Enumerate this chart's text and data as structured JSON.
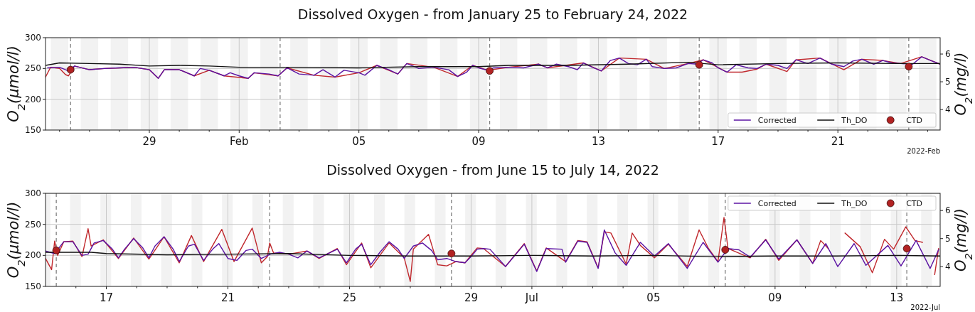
{
  "chart_data": [
    {
      "type": "line",
      "title": "Dissolved Oxygen - from January 25 to February 24, 2022",
      "ylabel": "O$_{2}$(μmol/l)",
      "y2label": "O$_{2}$(mg/l)",
      "xlim": [
        "2022-01-25T12:45",
        "2022-02-24T10:00"
      ],
      "ylim": [
        150,
        300
      ],
      "yticks": [
        150,
        200,
        250,
        300
      ],
      "y2lim": [
        3.26,
        6.59
      ],
      "y2ticks": [
        4,
        5,
        6
      ],
      "xticks": [
        {
          "value": "2022-01-26T00:00",
          "label": null
        },
        {
          "value": "2022-01-27T00:00",
          "label": null
        },
        {
          "value": "2022-01-28T00:00",
          "label": null
        },
        {
          "value": "2022-01-29T00:00",
          "label": "29"
        },
        {
          "value": "2022-01-30T00:00",
          "label": null
        },
        {
          "value": "2022-01-31T00:00",
          "label": null
        },
        {
          "value": "2022-02-01T00:00",
          "label": "Feb"
        },
        {
          "value": "2022-02-02T00:00",
          "label": null
        },
        {
          "value": "2022-02-03T00:00",
          "label": null
        },
        {
          "value": "2022-02-04T00:00",
          "label": null
        },
        {
          "value": "2022-02-05T00:00",
          "label": "05"
        },
        {
          "value": "2022-02-06T00:00",
          "label": null
        },
        {
          "value": "2022-02-07T00:00",
          "label": null
        },
        {
          "value": "2022-02-08T00:00",
          "label": null
        },
        {
          "value": "2022-02-09T00:00",
          "label": "09"
        },
        {
          "value": "2022-02-10T00:00",
          "label": null
        },
        {
          "value": "2022-02-11T00:00",
          "label": null
        },
        {
          "value": "2022-02-12T00:00",
          "label": null
        },
        {
          "value": "2022-02-13T00:00",
          "label": "13"
        },
        {
          "value": "2022-02-14T00:00",
          "label": null
        },
        {
          "value": "2022-02-15T00:00",
          "label": null
        },
        {
          "value": "2022-02-16T00:00",
          "label": null
        },
        {
          "value": "2022-02-17T00:00",
          "label": "17"
        },
        {
          "value": "2022-02-18T00:00",
          "label": null
        },
        {
          "value": "2022-02-19T00:00",
          "label": null
        },
        {
          "value": "2022-02-20T00:00",
          "label": null
        },
        {
          "value": "2022-02-21T00:00",
          "label": "21"
        },
        {
          "value": "2022-02-22T00:00",
          "label": null
        },
        {
          "value": "2022-02-23T00:00",
          "label": null
        },
        {
          "value": "2022-02-24T00:00",
          "label": null
        }
      ],
      "grid": true,
      "legend": "bottom right",
      "annotations": [
        "2022-Feb"
      ],
      "bands": [
        {
          "axis": "x",
          "from": "2022-01-25T17:00",
          "to": "2022-01-26T07:00",
          "color": "#f2f2f2"
        },
        {
          "axis": "x",
          "from": "2022-01-26T17:00",
          "to": "2022-01-27T07:00",
          "color": "#f2f2f2"
        },
        {
          "axis": "x",
          "from": "2022-01-27T17:00",
          "to": "2022-01-28T07:00",
          "color": "#f2f2f2"
        },
        {
          "axis": "x",
          "from": "2022-01-28T17:00",
          "to": "2022-01-29T07:00",
          "color": "#f2f2f2"
        },
        {
          "axis": "x",
          "from": "2022-01-29T17:00",
          "to": "2022-01-30T07:00",
          "color": "#f2f2f2"
        },
        {
          "axis": "x",
          "from": "2022-01-30T17:00",
          "to": "2022-01-31T07:00",
          "color": "#f2f2f2"
        },
        {
          "axis": "x",
          "from": "2022-01-31T17:00",
          "to": "2022-02-01T07:00",
          "color": "#f2f2f2"
        },
        {
          "axis": "x",
          "from": "2022-02-01T17:00",
          "to": "2022-02-02T07:00",
          "color": "#f2f2f2"
        },
        {
          "axis": "x",
          "from": "2022-02-02T17:00",
          "to": "2022-02-03T07:00",
          "color": "#f2f2f2"
        },
        {
          "axis": "x",
          "from": "2022-02-03T17:00",
          "to": "2022-02-04T07:00",
          "color": "#f2f2f2"
        },
        {
          "axis": "x",
          "from": "2022-02-04T17:00",
          "to": "2022-02-05T07:00",
          "color": "#f2f2f2"
        },
        {
          "axis": "x",
          "from": "2022-02-05T17:00",
          "to": "2022-02-06T07:00",
          "color": "#f2f2f2"
        },
        {
          "axis": "x",
          "from": "2022-02-06T17:00",
          "to": "2022-02-07T07:00",
          "color": "#f2f2f2"
        },
        {
          "axis": "x",
          "from": "2022-02-07T17:00",
          "to": "2022-02-08T07:00",
          "color": "#f2f2f2"
        },
        {
          "axis": "x",
          "from": "2022-02-08T17:00",
          "to": "2022-02-09T07:00",
          "color": "#f2f2f2"
        },
        {
          "axis": "x",
          "from": "2022-02-09T17:00",
          "to": "2022-02-10T07:00",
          "color": "#f2f2f2"
        },
        {
          "axis": "x",
          "from": "2022-02-10T17:00",
          "to": "2022-02-11T07:00",
          "color": "#f2f2f2"
        },
        {
          "axis": "x",
          "from": "2022-02-11T17:00",
          "to": "2022-02-12T07:00",
          "color": "#f2f2f2"
        },
        {
          "axis": "x",
          "from": "2022-02-12T17:00",
          "to": "2022-02-13T07:00",
          "color": "#f2f2f2"
        },
        {
          "axis": "x",
          "from": "2022-02-13T17:00",
          "to": "2022-02-14T07:00",
          "color": "#f2f2f2"
        },
        {
          "axis": "x",
          "from": "2022-02-14T17:00",
          "to": "2022-02-15T07:00",
          "color": "#f2f2f2"
        },
        {
          "axis": "x",
          "from": "2022-02-15T17:00",
          "to": "2022-02-16T07:00",
          "color": "#f2f2f2"
        },
        {
          "axis": "x",
          "from": "2022-02-16T17:00",
          "to": "2022-02-17T07:00",
          "color": "#f2f2f2"
        },
        {
          "axis": "x",
          "from": "2022-02-17T17:00",
          "to": "2022-02-18T07:00",
          "color": "#f2f2f2"
        },
        {
          "axis": "x",
          "from": "2022-02-18T17:00",
          "to": "2022-02-19T07:00",
          "color": "#f2f2f2"
        },
        {
          "axis": "x",
          "from": "2022-02-19T17:00",
          "to": "2022-02-20T07:00",
          "color": "#f2f2f2"
        },
        {
          "axis": "x",
          "from": "2022-02-20T17:00",
          "to": "2022-02-21T07:00",
          "color": "#f2f2f2"
        },
        {
          "axis": "x",
          "from": "2022-02-21T17:00",
          "to": "2022-02-22T07:00",
          "color": "#f2f2f2"
        },
        {
          "axis": "x",
          "from": "2022-02-22T17:00",
          "to": "2022-02-23T07:00",
          "color": "#f2f2f2"
        },
        {
          "axis": "x",
          "from": "2022-02-23T17:00",
          "to": "2022-02-24T07:00",
          "color": "#f2f2f2"
        }
      ],
      "ref_lines": [
        {
          "axis": "x",
          "value": "2022-01-26T08:50",
          "color": "#808080",
          "line_style": "dashed"
        },
        {
          "axis": "x",
          "value": "2022-02-02T08:50",
          "color": "#808080",
          "line_style": "dashed"
        },
        {
          "axis": "x",
          "value": "2022-02-09T08:50",
          "color": "#808080",
          "line_style": "dashed"
        },
        {
          "axis": "x",
          "value": "2022-02-16T08:50",
          "color": "#808080",
          "line_style": "dashed"
        },
        {
          "axis": "x",
          "value": "2022-02-23T08:50",
          "color": "#808080",
          "line_style": "dashed"
        }
      ],
      "series": [
        {
          "type": "line",
          "color": "#c0282d",
          "x": [
            "2022-01-25T12:45",
            "2022-01-25T16:48",
            "2022-01-26T00:00",
            "2022-01-26T04:48",
            "2022-01-26T07:12",
            "2022-01-26T12:00",
            "2022-01-27T00:00",
            "2022-01-27T12:00",
            "2022-01-28T00:00",
            "2022-01-28T12:00",
            "2022-01-29T00:00",
            "2022-01-29T07:12",
            "2022-01-29T12:00",
            "2022-01-30T00:00",
            "2022-01-30T12:00",
            "2022-01-31T00:00",
            "2022-01-31T12:00",
            "2022-02-01T07:12",
            "2022-02-01T12:00",
            "2022-02-02T07:12",
            "2022-02-02T14:24",
            "2022-02-03T12:00",
            "2022-02-04T04:48",
            "2022-02-05T00:00",
            "2022-02-05T14:24",
            "2022-02-06T07:12",
            "2022-02-06T14:24",
            "2022-02-07T12:00",
            "2022-02-08T07:12",
            "2022-02-08T19:12",
            "2022-02-09T07:12",
            "2022-02-10T00:00",
            "2022-02-11T00:00",
            "2022-02-11T07:12",
            "2022-02-12T12:00",
            "2022-02-13T02:24",
            "2022-02-13T16:48",
            "2022-02-14T14:24",
            "2022-02-15T04:48",
            "2022-02-16T00:00",
            "2022-02-16T12:00",
            "2022-02-17T07:12",
            "2022-02-17T19:12",
            "2022-02-18T07:12",
            "2022-02-18T14:24",
            "2022-02-19T07:12",
            "2022-02-19T14:24",
            "2022-02-20T09:36",
            "2022-02-21T04:48",
            "2022-02-21T19:12",
            "2022-02-22T12:00",
            "2022-02-23T02:24",
            "2022-02-23T19:12",
            "2022-02-24T10:00"
          ],
          "values": [
            236,
            252,
            250,
            240,
            238,
            254,
            248,
            250,
            251,
            252,
            248,
            234,
            248,
            248,
            238,
            247,
            238,
            234,
            243,
            238,
            251,
            239,
            236,
            243,
            255,
            241,
            258,
            252,
            237,
            255,
            247,
            252,
            257,
            251,
            259,
            246,
            267,
            265,
            250,
            258,
            264,
            244,
            244,
            249,
            257,
            245,
            264,
            267,
            248,
            265,
            263,
            258,
            269,
            257
          ]
        },
        {
          "type": "line",
          "name": "Corrected",
          "color": "#5b13a3",
          "x": [
            "2022-01-25T14:24",
            "2022-01-26T00:00",
            "2022-01-26T07:12",
            "2022-01-26T12:00",
            "2022-01-27T00:00",
            "2022-01-27T12:00",
            "2022-01-28T00:00",
            "2022-01-28T12:00",
            "2022-01-29T00:00",
            "2022-01-29T07:12",
            "2022-01-29T12:00",
            "2022-01-30T00:00",
            "2022-01-30T12:00",
            "2022-01-30T16:48",
            "2022-01-31T00:00",
            "2022-01-31T12:00",
            "2022-01-31T16:48",
            "2022-02-01T00:00",
            "2022-02-01T07:12",
            "2022-02-01T12:00",
            "2022-02-02T00:00",
            "2022-02-02T07:12",
            "2022-02-02T14:24",
            "2022-02-03T00:00",
            "2022-02-03T12:00",
            "2022-02-03T19:12",
            "2022-02-04T04:48",
            "2022-02-04T12:00",
            "2022-02-05T00:00",
            "2022-02-05T04:48",
            "2022-02-05T14:24",
            "2022-02-06T00:00",
            "2022-02-06T07:12",
            "2022-02-06T14:24",
            "2022-02-07T00:00",
            "2022-02-07T12:00",
            "2022-02-08T00:00",
            "2022-02-08T07:12",
            "2022-02-08T14:24",
            "2022-02-08T19:12",
            "2022-02-09T00:00",
            "2022-02-09T07:12",
            "2022-02-09T12:00",
            "2022-02-10T00:00",
            "2022-02-10T12:00",
            "2022-02-11T00:00",
            "2022-02-11T07:12",
            "2022-02-11T14:24",
            "2022-02-12T00:00",
            "2022-02-12T07:12",
            "2022-02-12T12:00",
            "2022-02-12T19:12",
            "2022-02-13T02:24",
            "2022-02-13T09:36",
            "2022-02-13T16:48",
            "2022-02-14T00:00",
            "2022-02-14T07:12",
            "2022-02-14T14:24",
            "2022-02-14T19:12",
            "2022-02-15T04:48",
            "2022-02-15T14:24",
            "2022-02-16T00:00",
            "2022-02-16T07:12",
            "2022-02-16T12:00",
            "2022-02-16T19:12",
            "2022-02-17T00:00",
            "2022-02-17T07:12",
            "2022-02-17T14:24",
            "2022-02-18T00:00",
            "2022-02-18T07:12",
            "2022-02-18T14:24",
            "2022-02-19T00:00",
            "2022-02-19T07:12",
            "2022-02-19T14:24",
            "2022-02-20T00:00",
            "2022-02-20T09:36",
            "2022-02-20T19:12",
            "2022-02-21T04:48",
            "2022-02-21T12:00",
            "2022-02-21T19:12",
            "2022-02-22T04:48",
            "2022-02-22T12:00",
            "2022-02-22T19:12",
            "2022-02-23T02:24",
            "2022-02-23T12:00",
            "2022-02-23T19:12",
            "2022-02-24T02:24",
            "2022-02-24T10:00"
          ],
          "values": [
            251,
            252,
            246,
            254,
            248,
            250,
            251,
            252,
            248,
            234,
            248,
            248,
            238,
            250,
            247,
            238,
            243,
            238,
            234,
            243,
            241,
            238,
            251,
            241,
            239,
            248,
            236,
            247,
            243,
            239,
            255,
            248,
            241,
            258,
            250,
            252,
            248,
            237,
            244,
            255,
            251,
            247,
            251,
            252,
            251,
            257,
            251,
            257,
            253,
            248,
            259,
            252,
            246,
            263,
            267,
            258,
            256,
            265,
            253,
            250,
            251,
            258,
            257,
            264,
            259,
            251,
            244,
            256,
            251,
            250,
            257,
            255,
            250,
            264,
            258,
            267,
            257,
            253,
            262,
            265,
            257,
            263,
            259,
            258,
            257,
            269,
            263,
            257
          ]
        },
        {
          "type": "line",
          "name": "Th_DO",
          "color": "#111111",
          "x": [
            "2022-01-25T12:45",
            "2022-01-26T00:00",
            "2022-01-27T00:00",
            "2022-01-28T00:00",
            "2022-01-29T00:00",
            "2022-01-30T00:00",
            "2022-01-31T00:00",
            "2022-02-01T00:00",
            "2022-02-03T00:00",
            "2022-02-05T00:00",
            "2022-02-07T00:00",
            "2022-02-09T00:00",
            "2022-02-10T00:00",
            "2022-02-12T00:00",
            "2022-02-14T00:00",
            "2022-02-16T00:00",
            "2022-02-17T00:00",
            "2022-02-19T00:00",
            "2022-02-21T00:00",
            "2022-02-23T00:00",
            "2022-02-24T10:00"
          ],
          "values": [
            255,
            259,
            258,
            257,
            254,
            255,
            254,
            252,
            252,
            251,
            253,
            253,
            255,
            255,
            257,
            260,
            256,
            258,
            259,
            258,
            258
          ]
        },
        {
          "type": "scatter",
          "name": "CTD",
          "color": "#b22222",
          "marker": "circle",
          "x": [
            "2022-01-26T08:50",
            "2022-02-09T08:50",
            "2022-02-16T08:50",
            "2022-02-23T08:50"
          ],
          "values": [
            248,
            246,
            256,
            253
          ]
        }
      ]
    },
    {
      "type": "line",
      "title": "Dissolved Oxygen - from June 15 to July 14, 2022",
      "ylabel": "O$_{2}$(μmol/l)",
      "y2label": "O$_{2}$(mg/l)",
      "xlim": [
        "2022-06-15T00:00",
        "2022-07-14T10:20"
      ],
      "ylim": [
        150,
        300
      ],
      "yticks": [
        150,
        200,
        250,
        300
      ],
      "y2lim": [
        3.3,
        6.61
      ],
      "y2ticks": [
        4,
        5,
        6
      ],
      "xticks": [
        {
          "value": "2022-06-16T00:00",
          "label": null
        },
        {
          "value": "2022-06-17T00:00",
          "label": "17"
        },
        {
          "value": "2022-06-18T00:00",
          "label": null
        },
        {
          "value": "2022-06-19T00:00",
          "label": null
        },
        {
          "value": "2022-06-20T00:00",
          "label": null
        },
        {
          "value": "2022-06-21T00:00",
          "label": "21"
        },
        {
          "value": "2022-06-22T00:00",
          "label": null
        },
        {
          "value": "2022-06-23T00:00",
          "label": null
        },
        {
          "value": "2022-06-24T00:00",
          "label": null
        },
        {
          "value": "2022-06-25T00:00",
          "label": "25"
        },
        {
          "value": "2022-06-26T00:00",
          "label": null
        },
        {
          "value": "2022-06-27T00:00",
          "label": null
        },
        {
          "value": "2022-06-28T00:00",
          "label": null
        },
        {
          "value": "2022-06-29T00:00",
          "label": "29"
        },
        {
          "value": "2022-06-30T00:00",
          "label": null
        },
        {
          "value": "2022-07-01T00:00",
          "label": "Jul"
        },
        {
          "value": "2022-07-02T00:00",
          "label": null
        },
        {
          "value": "2022-07-03T00:00",
          "label": null
        },
        {
          "value": "2022-07-04T00:00",
          "label": null
        },
        {
          "value": "2022-07-05T00:00",
          "label": "05"
        },
        {
          "value": "2022-07-06T00:00",
          "label": null
        },
        {
          "value": "2022-07-07T00:00",
          "label": null
        },
        {
          "value": "2022-07-08T00:00",
          "label": null
        },
        {
          "value": "2022-07-09T00:00",
          "label": "09"
        },
        {
          "value": "2022-07-10T00:00",
          "label": null
        },
        {
          "value": "2022-07-11T00:00",
          "label": null
        },
        {
          "value": "2022-07-12T00:00",
          "label": null
        },
        {
          "value": "2022-07-13T00:00",
          "label": "13"
        },
        {
          "value": "2022-07-14T00:00",
          "label": null
        }
      ],
      "grid": true,
      "legend": "top right",
      "annotations": [
        "2022-Jul"
      ],
      "bands": [
        {
          "axis": "x",
          "from": "2022-06-15T00:00",
          "to": "2022-06-15T03:50",
          "color": "#f2f2f2"
        },
        {
          "axis": "x",
          "from": "2022-06-15T19:20",
          "to": "2022-06-16T03:50",
          "color": "#f2f2f2"
        },
        {
          "axis": "x",
          "from": "2022-06-16T19:20",
          "to": "2022-06-17T03:50",
          "color": "#f2f2f2"
        },
        {
          "axis": "x",
          "from": "2022-06-17T19:20",
          "to": "2022-06-18T03:50",
          "color": "#f2f2f2"
        },
        {
          "axis": "x",
          "from": "2022-06-18T19:20",
          "to": "2022-06-19T03:50",
          "color": "#f2f2f2"
        },
        {
          "axis": "x",
          "from": "2022-06-19T19:20",
          "to": "2022-06-20T03:50",
          "color": "#f2f2f2"
        },
        {
          "axis": "x",
          "from": "2022-06-20T19:20",
          "to": "2022-06-21T03:50",
          "color": "#f2f2f2"
        },
        {
          "axis": "x",
          "from": "2022-06-21T19:20",
          "to": "2022-06-22T03:50",
          "color": "#f2f2f2"
        },
        {
          "axis": "x",
          "from": "2022-06-22T19:20",
          "to": "2022-06-23T03:50",
          "color": "#f2f2f2"
        },
        {
          "axis": "x",
          "from": "2022-06-23T19:20",
          "to": "2022-06-24T03:50",
          "color": "#f2f2f2"
        },
        {
          "axis": "x",
          "from": "2022-06-24T19:20",
          "to": "2022-06-25T03:50",
          "color": "#f2f2f2"
        },
        {
          "axis": "x",
          "from": "2022-06-25T19:20",
          "to": "2022-06-26T03:50",
          "color": "#f2f2f2"
        },
        {
          "axis": "x",
          "from": "2022-06-26T19:20",
          "to": "2022-06-27T03:50",
          "color": "#f2f2f2"
        },
        {
          "axis": "x",
          "from": "2022-06-27T19:20",
          "to": "2022-06-28T03:50",
          "color": "#f2f2f2"
        },
        {
          "axis": "x",
          "from": "2022-06-28T19:20",
          "to": "2022-06-29T03:50",
          "color": "#f2f2f2"
        },
        {
          "axis": "x",
          "from": "2022-06-29T19:20",
          "to": "2022-06-30T03:50",
          "color": "#f2f2f2"
        },
        {
          "axis": "x",
          "from": "2022-06-30T19:20",
          "to": "2022-07-01T03:50",
          "color": "#f2f2f2"
        },
        {
          "axis": "x",
          "from": "2022-07-01T19:20",
          "to": "2022-07-02T03:50",
          "color": "#f2f2f2"
        },
        {
          "axis": "x",
          "from": "2022-07-02T19:20",
          "to": "2022-07-03T03:50",
          "color": "#f2f2f2"
        },
        {
          "axis": "x",
          "from": "2022-07-03T19:20",
          "to": "2022-07-04T03:50",
          "color": "#f2f2f2"
        },
        {
          "axis": "x",
          "from": "2022-07-04T19:20",
          "to": "2022-07-05T03:50",
          "color": "#f2f2f2"
        },
        {
          "axis": "x",
          "from": "2022-07-05T19:20",
          "to": "2022-07-06T03:50",
          "color": "#f2f2f2"
        },
        {
          "axis": "x",
          "from": "2022-07-06T19:20",
          "to": "2022-07-07T03:50",
          "color": "#f2f2f2"
        },
        {
          "axis": "x",
          "from": "2022-07-07T19:20",
          "to": "2022-07-08T03:50",
          "color": "#f2f2f2"
        },
        {
          "axis": "x",
          "from": "2022-07-08T19:20",
          "to": "2022-07-09T03:50",
          "color": "#f2f2f2"
        },
        {
          "axis": "x",
          "from": "2022-07-09T19:20",
          "to": "2022-07-10T03:50",
          "color": "#f2f2f2"
        },
        {
          "axis": "x",
          "from": "2022-07-10T19:20",
          "to": "2022-07-11T03:50",
          "color": "#f2f2f2"
        },
        {
          "axis": "x",
          "from": "2022-07-11T19:20",
          "to": "2022-07-12T03:50",
          "color": "#f2f2f2"
        },
        {
          "axis": "x",
          "from": "2022-07-12T19:20",
          "to": "2022-07-13T03:50",
          "color": "#f2f2f2"
        },
        {
          "axis": "x",
          "from": "2022-07-13T19:20",
          "to": "2022-07-14T03:50",
          "color": "#f2f2f2"
        }
      ],
      "ref_lines": [
        {
          "axis": "x",
          "value": "2022-06-15T08:30",
          "color": "#808080",
          "line_style": "dashed"
        },
        {
          "axis": "x",
          "value": "2022-06-22T09:00",
          "color": "#808080",
          "line_style": "dashed"
        },
        {
          "axis": "x",
          "value": "2022-06-28T08:30",
          "color": "#808080",
          "line_style": "dashed"
        },
        {
          "axis": "x",
          "value": "2022-07-07T08:40",
          "color": "#808080",
          "line_style": "dashed"
        },
        {
          "axis": "x",
          "value": "2022-07-13T08:00",
          "color": "#808080",
          "line_style": "dashed"
        }
      ],
      "series": [
        {
          "type": "line",
          "color": "#c0282d",
          "x": [
            "2022-06-15T00:00",
            "2022-06-15T04:48",
            "2022-06-15T07:12",
            "2022-06-15T09:36",
            "2022-06-15T14:24",
            "2022-06-15T21:36",
            "2022-06-16T04:48",
            "2022-06-16T09:36",
            "2022-06-16T12:00",
            "2022-06-16T21:36",
            "2022-06-17T09:36",
            "2022-06-17T21:36",
            "2022-06-18T09:36",
            "2022-06-18T21:36",
            "2022-06-19T09:36",
            "2022-06-19T19:12",
            "2022-06-20T04:48",
            "2022-06-20T19:12",
            "2022-06-21T04:48",
            "2022-06-21T19:12",
            "2022-06-22T02:24",
            "2022-06-22T07:12",
            "2022-06-22T09:00",
            "2022-06-22T12:00",
            "2022-06-23T00:00",
            "2022-06-23T14:24",
            "2022-06-24T00:00",
            "2022-06-24T14:24",
            "2022-06-24T21:36",
            "2022-06-25T09:36",
            "2022-06-25T16:48",
            "2022-06-26T07:12",
            "2022-06-26T19:12",
            "2022-06-27T00:00",
            "2022-06-27T02:24",
            "2022-06-27T14:24",
            "2022-06-27T21:36",
            "2022-06-28T04:48",
            "2022-06-28T12:00",
            "2022-06-28T19:12",
            "2022-06-29T04:48",
            "2022-06-29T09:50",
            "2022-06-30T03:10",
            "2022-06-30T18:00",
            "2022-07-01T03:50",
            "2022-07-01T11:20",
            "2022-07-02T02:40",
            "2022-07-02T12:15",
            "2022-07-02T19:30",
            "2022-07-03T04:20",
            "2022-07-03T09:10",
            "2022-07-03T14:24",
            "2022-07-04T02:25",
            "2022-07-04T07:12",
            "2022-07-04T13:40",
            "2022-07-05T00:45",
            "2022-07-05T11:45",
            "2022-07-06T02:40",
            "2022-07-06T12:00",
            "2022-07-06T19:12",
            "2022-07-07T02:55",
            "2022-07-07T07:40",
            "2022-07-07T10:50",
            "2022-07-08T04:20",
            "2022-07-08T16:35",
            "2022-07-09T02:55",
            "2022-07-09T17:15",
            "2022-07-10T05:40",
            "2022-07-10T12:00",
            "2022-07-10T18:00",
            "2022-07-11T00:00",
            "2022-07-11T07:12",
            "2022-07-11T19:12",
            "2022-07-12T04:48",
            "2022-07-12T14:24",
            "2022-07-12T21:36",
            "2022-07-13T07:12",
            "2022-07-13T14:24",
            "2022-07-13T20:24",
            "2022-07-14T00:00",
            "2022-07-14T06:00",
            "2022-07-14T09:05"
          ],
          "values": [
            195,
            177,
            223,
            200,
            222,
            223,
            198,
            243,
            215,
            225,
            195,
            228,
            194,
            230,
            188,
            232,
            190,
            242,
            190,
            244,
            188,
            198,
            220,
            204,
            202,
            207,
            195,
            211,
            185,
            220,
            180,
            220,
            196,
            158,
            210,
            234,
            185,
            183,
            190,
            188,
            212,
            211,
            182,
            219,
            175,
            212,
            190,
            224,
            222,
            180,
            238,
            236,
            186,
            236,
            216,
            196,
            218,
            182,
            241,
            212,
            190,
            261,
            211,
            196,
            226,
            192,
            225,
            187,
            224,
            211,
            null,
            236,
            214,
            172,
            226,
            210,
            246,
            224,
            221,
            null,
            169,
            211
          ]
        },
        {
          "type": "line",
          "name": "Corrected",
          "color": "#5b13a3",
          "x": [
            "2022-06-15T00:00",
            "2022-06-15T07:12",
            "2022-06-15T14:24",
            "2022-06-15T21:36",
            "2022-06-16T04:48",
            "2022-06-16T09:36",
            "2022-06-16T14:24",
            "2022-06-16T21:36",
            "2022-06-17T04:48",
            "2022-06-17T09:36",
            "2022-06-17T14:24",
            "2022-06-17T21:36",
            "2022-06-18T04:48",
            "2022-06-18T09:36",
            "2022-06-18T14:24",
            "2022-06-18T21:36",
            "2022-06-19T04:48",
            "2022-06-19T09:36",
            "2022-06-19T16:48",
            "2022-06-19T21:36",
            "2022-06-20T04:48",
            "2022-06-20T12:00",
            "2022-06-20T16:48",
            "2022-06-21T00:00",
            "2022-06-21T07:12",
            "2022-06-21T14:24",
            "2022-06-21T19:12",
            "2022-06-22T02:24",
            "2022-06-22T09:36",
            "2022-06-22T16:48",
            "2022-06-23T00:00",
            "2022-06-23T07:12",
            "2022-06-23T14:24",
            "2022-06-24T00:00",
            "2022-06-24T07:12",
            "2022-06-24T14:24",
            "2022-06-24T21:36",
            "2022-06-25T04:48",
            "2022-06-25T09:36",
            "2022-06-25T16:48",
            "2022-06-26T00:00",
            "2022-06-26T07:12",
            "2022-06-26T14:24",
            "2022-06-26T19:12",
            "2022-06-27T02:24",
            "2022-06-27T09:36",
            "2022-06-27T16:48",
            "2022-06-27T21:36",
            "2022-06-28T04:48",
            "2022-06-28T12:00",
            "2022-06-28T19:12",
            "2022-06-29T00:00",
            "2022-06-29T04:48",
            "2022-06-29T09:50",
            "2022-06-29T14:50",
            "2022-06-30T03:10",
            "2022-06-30T18:00",
            "2022-07-01T03:50",
            "2022-07-01T11:20",
            "2022-07-01T23:45",
            "2022-07-02T02:40",
            "2022-07-02T12:15",
            "2022-07-02T19:30",
            "2022-07-03T04:20",
            "2022-07-03T09:10",
            "2022-07-03T17:45",
            "2022-07-04T02:25",
            "2022-07-04T13:40",
            "2022-07-05T00:45",
            "2022-07-05T11:45",
            "2022-07-06T02:40",
            "2022-07-06T15:10",
            "2022-07-07T02:55",
            "2022-07-07T10:50",
            "2022-07-07T19:25",
            "2022-07-08T04:20",
            "2022-07-08T16:35",
            "2022-07-09T02:55",
            "2022-07-09T17:15",
            "2022-07-10T05:40",
            "2022-07-10T16:05",
            "2022-07-11T01:30",
            "2022-07-11T14:25",
            "2022-07-11T23:45",
            "2022-07-12T17:05",
            "2022-07-13T03:25",
            "2022-07-13T15:20",
            "2022-07-14T02:25",
            "2022-07-14T09:05"
          ],
          "values": [
            207,
            203,
            222,
            222,
            200,
            202,
            220,
            224,
            210,
            196,
            210,
            227,
            212,
            196,
            215,
            230,
            210,
            190,
            215,
            218,
            192,
            210,
            219,
            195,
            192,
            208,
            210,
            195,
            202,
            205,
            202,
            196,
            207,
            196,
            203,
            210,
            188,
            210,
            218,
            185,
            205,
            222,
            210,
            195,
            215,
            220,
            208,
            193,
            195,
            190,
            188,
            198,
            210,
            211,
            210,
            182,
            218,
            174,
            211,
            210,
            189,
            223,
            221,
            179,
            241,
            204,
            184,
            221,
            199,
            219,
            179,
            221,
            189,
            211,
            209,
            197,
            225,
            194,
            225,
            187,
            219,
            182,
            219,
            184,
            216,
            183,
            224,
            179,
            209
          ]
        },
        {
          "type": "line",
          "name": "Th_DO",
          "color": "#111111",
          "x": [
            "2022-06-15T00:00",
            "2022-06-16T12:00",
            "2022-06-17T00:00",
            "2022-06-19T00:00",
            "2022-06-21T00:00",
            "2022-06-23T00:00",
            "2022-06-25T00:00",
            "2022-06-27T00:00",
            "2022-06-29T00:00",
            "2022-07-01T00:00",
            "2022-07-03T00:00",
            "2022-07-05T00:00",
            "2022-07-07T00:00",
            "2022-07-09T00:00",
            "2022-07-11T00:00",
            "2022-07-13T00:00",
            "2022-07-14T10:20"
          ],
          "values": [
            205,
            205,
            203,
            201,
            202,
            203,
            200,
            199,
            199,
            200,
            199,
            200,
            198,
            199,
            199,
            200,
            199
          ]
        },
        {
          "type": "scatter",
          "name": "CTD",
          "color": "#b22222",
          "marker": "circle",
          "x": [
            "2022-06-15T08:30",
            "2022-06-28T08:30",
            "2022-07-07T08:40",
            "2022-07-13T08:00"
          ],
          "values": [
            208,
            203,
            209,
            211
          ]
        }
      ]
    }
  ]
}
